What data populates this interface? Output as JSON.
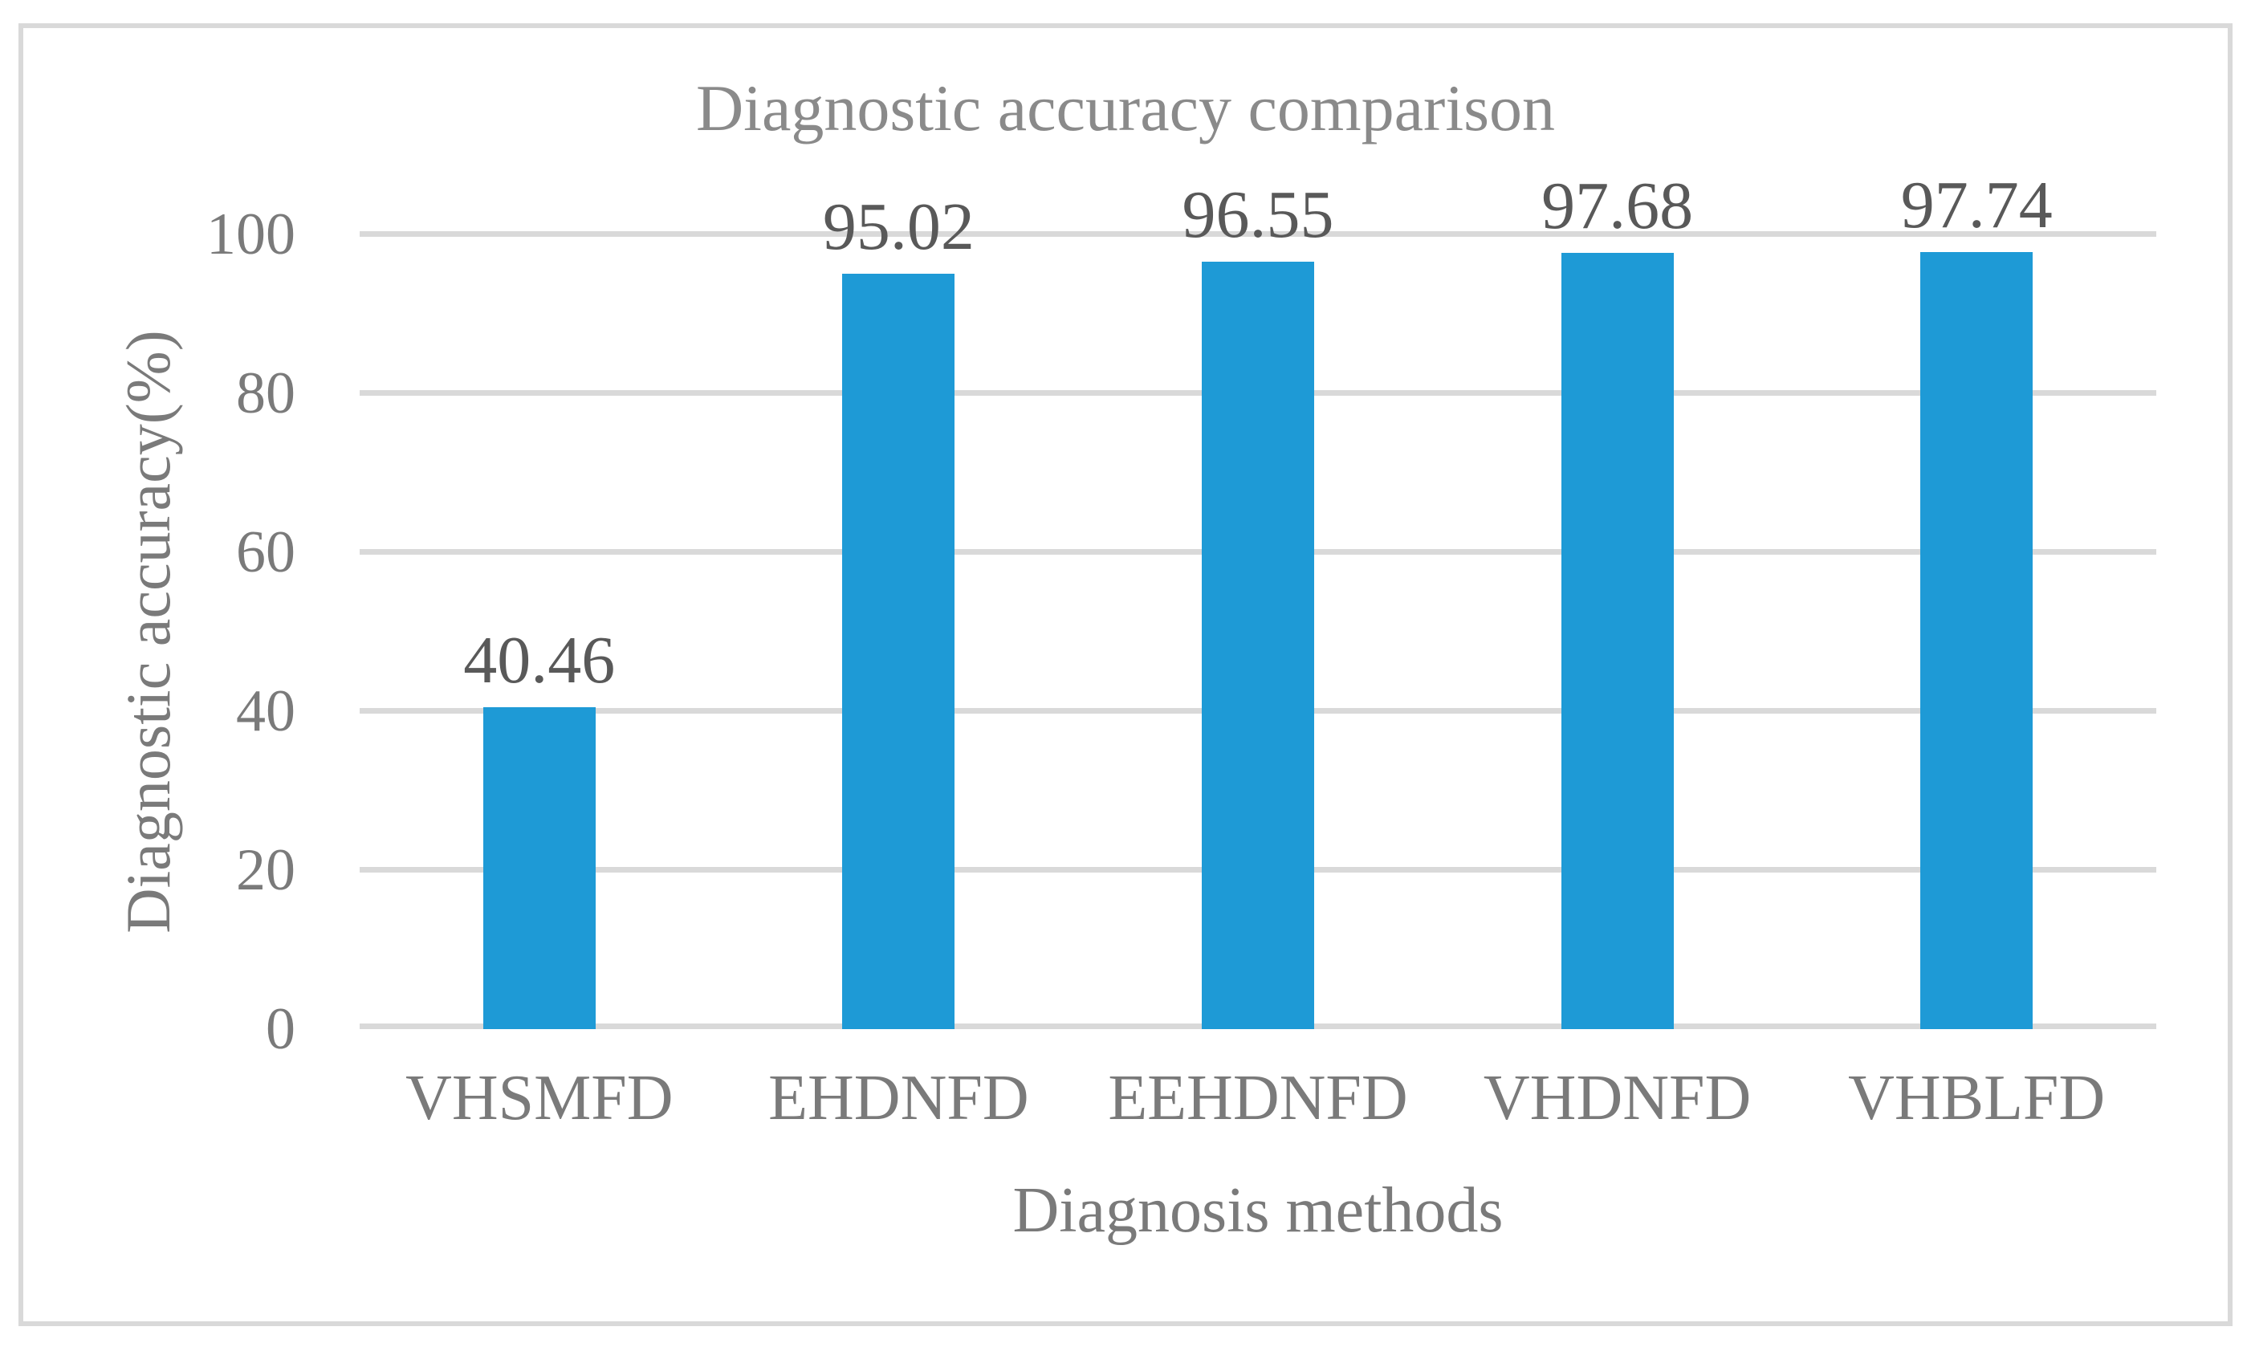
{
  "chart_data": {
    "type": "bar",
    "title": "Diagnostic accuracy comparison",
    "xlabel": "Diagnosis methods",
    "ylabel": "Diagnostic accuracy(%)",
    "categories": [
      "VHSMFD",
      "EHDNFD",
      "EEHDNFD",
      "VHDNFD",
      "VHBLFD"
    ],
    "values": [
      40.46,
      95.02,
      96.55,
      97.68,
      97.74
    ],
    "value_labels": [
      "40.46",
      "95.02",
      "96.55",
      "97.68",
      "97.74"
    ],
    "ylim": [
      0,
      100
    ],
    "yticks": [
      0,
      20,
      40,
      60,
      80,
      100
    ],
    "grid": true,
    "legend_position": "none",
    "colors": {
      "bar": "#1E9AD6",
      "gridline": "#D9D9D9",
      "border": "#D9D9D9",
      "title_text": "#8A8A8A",
      "axis_text": "#7A7A7A",
      "value_label_text": "#595959"
    }
  }
}
